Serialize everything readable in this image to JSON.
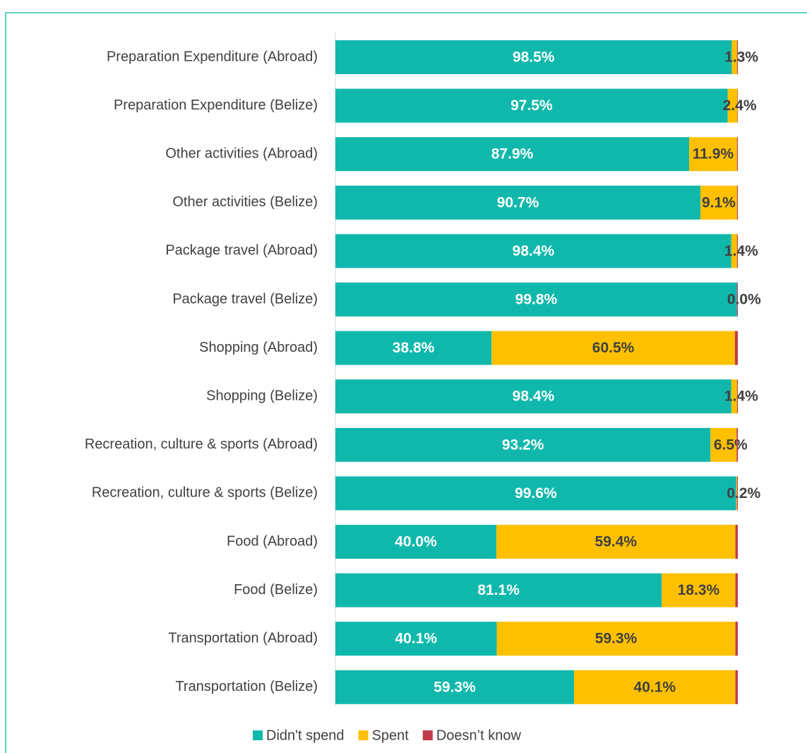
{
  "chart_data": {
    "type": "stacked_bar_horizontal",
    "categories": [
      "Preparation Expenditure (Abroad)",
      "Preparation Expenditure (Belize)",
      "Other activities (Abroad)",
      "Other activities (Belize)",
      "Package travel (Abroad)",
      "Package travel (Belize)",
      "Shopping (Abroad)",
      "Shopping (Belize)",
      "Recreation, culture & sports (Abroad)",
      "Recreation, culture & sports (Belize)",
      "Food (Abroad)",
      "Food (Belize)",
      "Transportation (Abroad)",
      "Transportation (Belize)"
    ],
    "series": [
      {
        "name": "Didn't spend",
        "color": "#10b8ac",
        "label_color": "#ffffff",
        "values": [
          98.5,
          97.5,
          87.9,
          90.7,
          98.4,
          99.8,
          38.8,
          98.4,
          93.2,
          99.6,
          40.0,
          81.1,
          40.1,
          59.3
        ],
        "value_labels": [
          "98.5%",
          "97.5%",
          "87.9%",
          "90.7%",
          "98.4%",
          "99.8%",
          "38.8%",
          "98.4%",
          "93.2%",
          "99.6%",
          "40.0%",
          "81.1%",
          "40.1%",
          "59.3%"
        ]
      },
      {
        "name": "Spent",
        "color": "#ffc000",
        "label_color": "#404040",
        "values": [
          1.3,
          2.4,
          11.9,
          9.1,
          1.4,
          0.0,
          60.5,
          1.4,
          6.5,
          0.2,
          59.4,
          18.3,
          59.3,
          40.1
        ],
        "value_labels": [
          "1.3%",
          "2.4%",
          "11.9%",
          "9.1%",
          "1.4%",
          "0.0%",
          "60.5%",
          "1.4%",
          "6.5%",
          "0.2%",
          "59.4%",
          "18.3%",
          "59.3%",
          "40.1%"
        ]
      },
      {
        "name": "Doesn’t know",
        "color": "#c0394b",
        "values": [
          0.2,
          0.1,
          0.2,
          0.2,
          0.2,
          0.2,
          0.7,
          0.2,
          0.3,
          0.2,
          0.6,
          0.6,
          0.6,
          0.6
        ]
      }
    ],
    "xlim": [
      0,
      100
    ],
    "legend": "bottom"
  }
}
